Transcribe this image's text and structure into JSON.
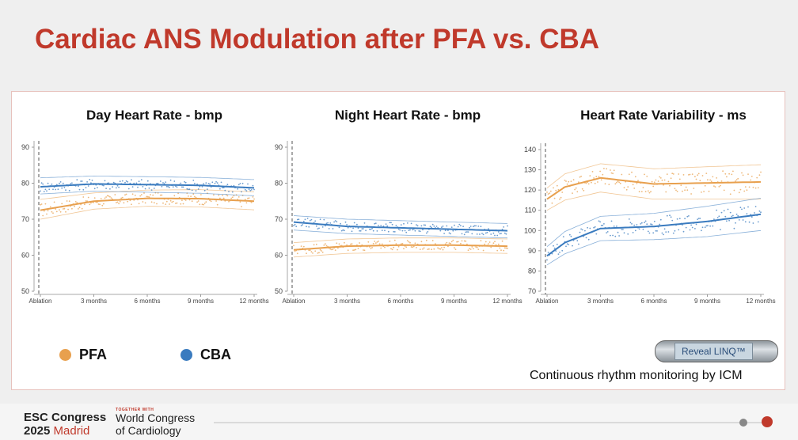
{
  "title": "Cardiac ANS Modulation after PFA vs. CBA",
  "legend": [
    {
      "label": "PFA",
      "color": "#e8a04e"
    },
    {
      "label": "CBA",
      "color": "#3a7bbf"
    }
  ],
  "colors": {
    "pfa": "#e8a04e",
    "cba": "#3a7bbf",
    "title": "#c0392b"
  },
  "device": {
    "label": "Reveal LINQ™"
  },
  "caption": "Continuous rhythm monitoring by ICM",
  "footer": {
    "esc_line1": "ESC Congress",
    "esc_year": "2025",
    "esc_city": "Madrid",
    "together": "TOGETHER WITH",
    "wc_line1": "World Congress",
    "wc_line2": "of Cardiology"
  },
  "chart_data": [
    {
      "type": "line",
      "title": "Day Heart Rate - bmp",
      "x_ticks": [
        "Ablation",
        "3 months",
        "6 months",
        "9 months",
        "12 months"
      ],
      "x": [
        0,
        3,
        6,
        9,
        12
      ],
      "ylim": [
        50,
        90
      ],
      "y_ticks": [
        50,
        60,
        70,
        80,
        90
      ],
      "annotation": "Ablation",
      "series": [
        {
          "name": "PFA",
          "values": [
            72.5,
            75.0,
            75.8,
            75.7,
            75.0
          ],
          "ci": [
            [
              70.0,
              75.5
            ],
            [
              72.8,
              77.3
            ],
            [
              73.6,
              78.1
            ],
            [
              73.4,
              78.2
            ],
            [
              72.6,
              77.6
            ]
          ]
        },
        {
          "name": "CBA",
          "values": [
            79.0,
            79.8,
            79.6,
            79.4,
            78.7
          ],
          "ci": [
            [
              77.0,
              81.5
            ],
            [
              77.8,
              82.0
            ],
            [
              77.5,
              81.8
            ],
            [
              77.2,
              81.6
            ],
            [
              76.5,
              81.0
            ]
          ]
        }
      ]
    },
    {
      "type": "line",
      "title": "Night Heart Rate - bmp",
      "x_ticks": [
        "Ablation",
        "3 months",
        "6 months",
        "9 months",
        "12 months"
      ],
      "x": [
        0,
        3,
        6,
        9,
        12
      ],
      "ylim": [
        50,
        90
      ],
      "y_ticks": [
        50,
        60,
        70,
        80,
        90
      ],
      "annotation": "Ablation",
      "series": [
        {
          "name": "PFA",
          "values": [
            61.5,
            62.5,
            62.8,
            62.8,
            62.5
          ],
          "ci": [
            [
              59.5,
              63.5
            ],
            [
              60.5,
              64.5
            ],
            [
              60.8,
              64.8
            ],
            [
              60.8,
              64.8
            ],
            [
              60.5,
              64.5
            ]
          ]
        },
        {
          "name": "CBA",
          "values": [
            69.2,
            68.0,
            67.6,
            67.2,
            66.8
          ],
          "ci": [
            [
              67.0,
              71.0
            ],
            [
              66.0,
              70.0
            ],
            [
              65.6,
              69.6
            ],
            [
              65.2,
              69.2
            ],
            [
              64.8,
              68.8
            ]
          ]
        }
      ]
    },
    {
      "type": "line",
      "title": "Heart Rate Variability - ms",
      "x_ticks": [
        "Ablation",
        "3 months",
        "6 months",
        "9 months",
        "12 months"
      ],
      "x": [
        0,
        1,
        3,
        6,
        9,
        12
      ],
      "ylim": [
        70,
        140
      ],
      "y_ticks": [
        70,
        80,
        90,
        100,
        110,
        120,
        130,
        140
      ],
      "annotation": "Ablation",
      "series": [
        {
          "name": "PFA",
          "values": [
            115.5,
            121.5,
            126.0,
            123.0,
            123.5,
            124.0
          ],
          "ci": [
            [
              110.0,
              121.0
            ],
            [
              115.0,
              128.0
            ],
            [
              119.0,
              133.0
            ],
            [
              115.5,
              130.5
            ],
            [
              115.5,
              131.5
            ],
            [
              115.5,
              132.5
            ]
          ]
        },
        {
          "name": "CBA",
          "values": [
            87.5,
            94.0,
            101.0,
            102.0,
            104.5,
            108.0
          ],
          "ci": [
            [
              83.0,
              92.0
            ],
            [
              88.5,
              99.5
            ],
            [
              95.0,
              107.0
            ],
            [
              95.5,
              108.5
            ],
            [
              97.0,
              112.0
            ],
            [
              100.0,
              116.0
            ]
          ]
        }
      ]
    }
  ]
}
